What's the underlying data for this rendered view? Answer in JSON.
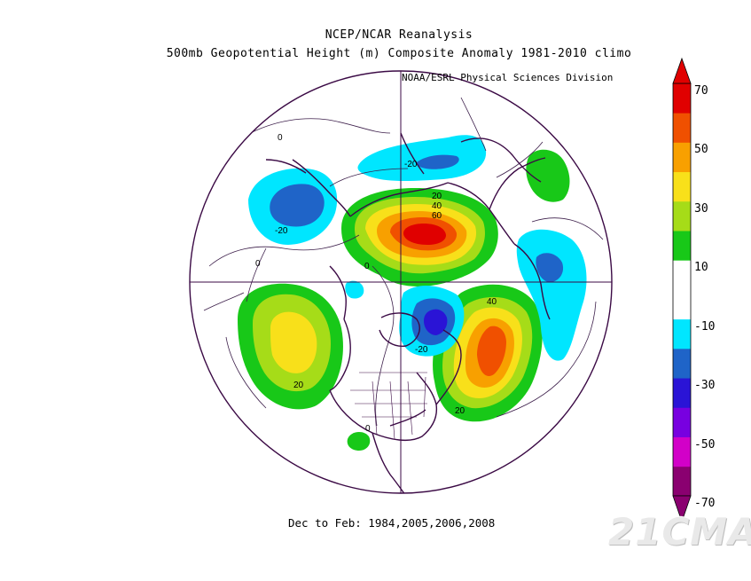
{
  "title_line1": "NCEP/NCAR Reanalysis",
  "title_line2": "500mb Geopotential Height (m) Composite Anomaly 1981-2010 climo",
  "credit": "NOAA/ESRL Physical Sciences Division",
  "footer": "Dec to Feb: 1984,2005,2006,2008",
  "watermark": "21CMA",
  "map_labels": {
    "l0_top": "0",
    "l0_left": "0",
    "l0_center": "0",
    "l0_usa": "0",
    "l20_atl": "20",
    "l40_arc": "40",
    "l60_arc": "60",
    "l40_pac": "40",
    "l20_pac": "20",
    "l20_e_atl": "20",
    "lm20_eur": "-20",
    "lm20_sib": "-20",
    "lm20_can": "-20"
  },
  "colorbar": {
    "labels": [
      "70",
      "50",
      "30",
      "10",
      "-10",
      "-30",
      "-50",
      "-70"
    ],
    "colors": [
      "#8a0070",
      "#d200c8",
      "#7800e0",
      "#2a14d6",
      "#1f64c8",
      "#00e6ff",
      "#ffffff",
      "#ffffff",
      "#18c818",
      "#a6dc18",
      "#f8e01a",
      "#f8a000",
      "#f05000",
      "#e00000"
    ]
  },
  "colors": {
    "contour": "#3c1e4a",
    "coast": "#3b0a45"
  }
}
